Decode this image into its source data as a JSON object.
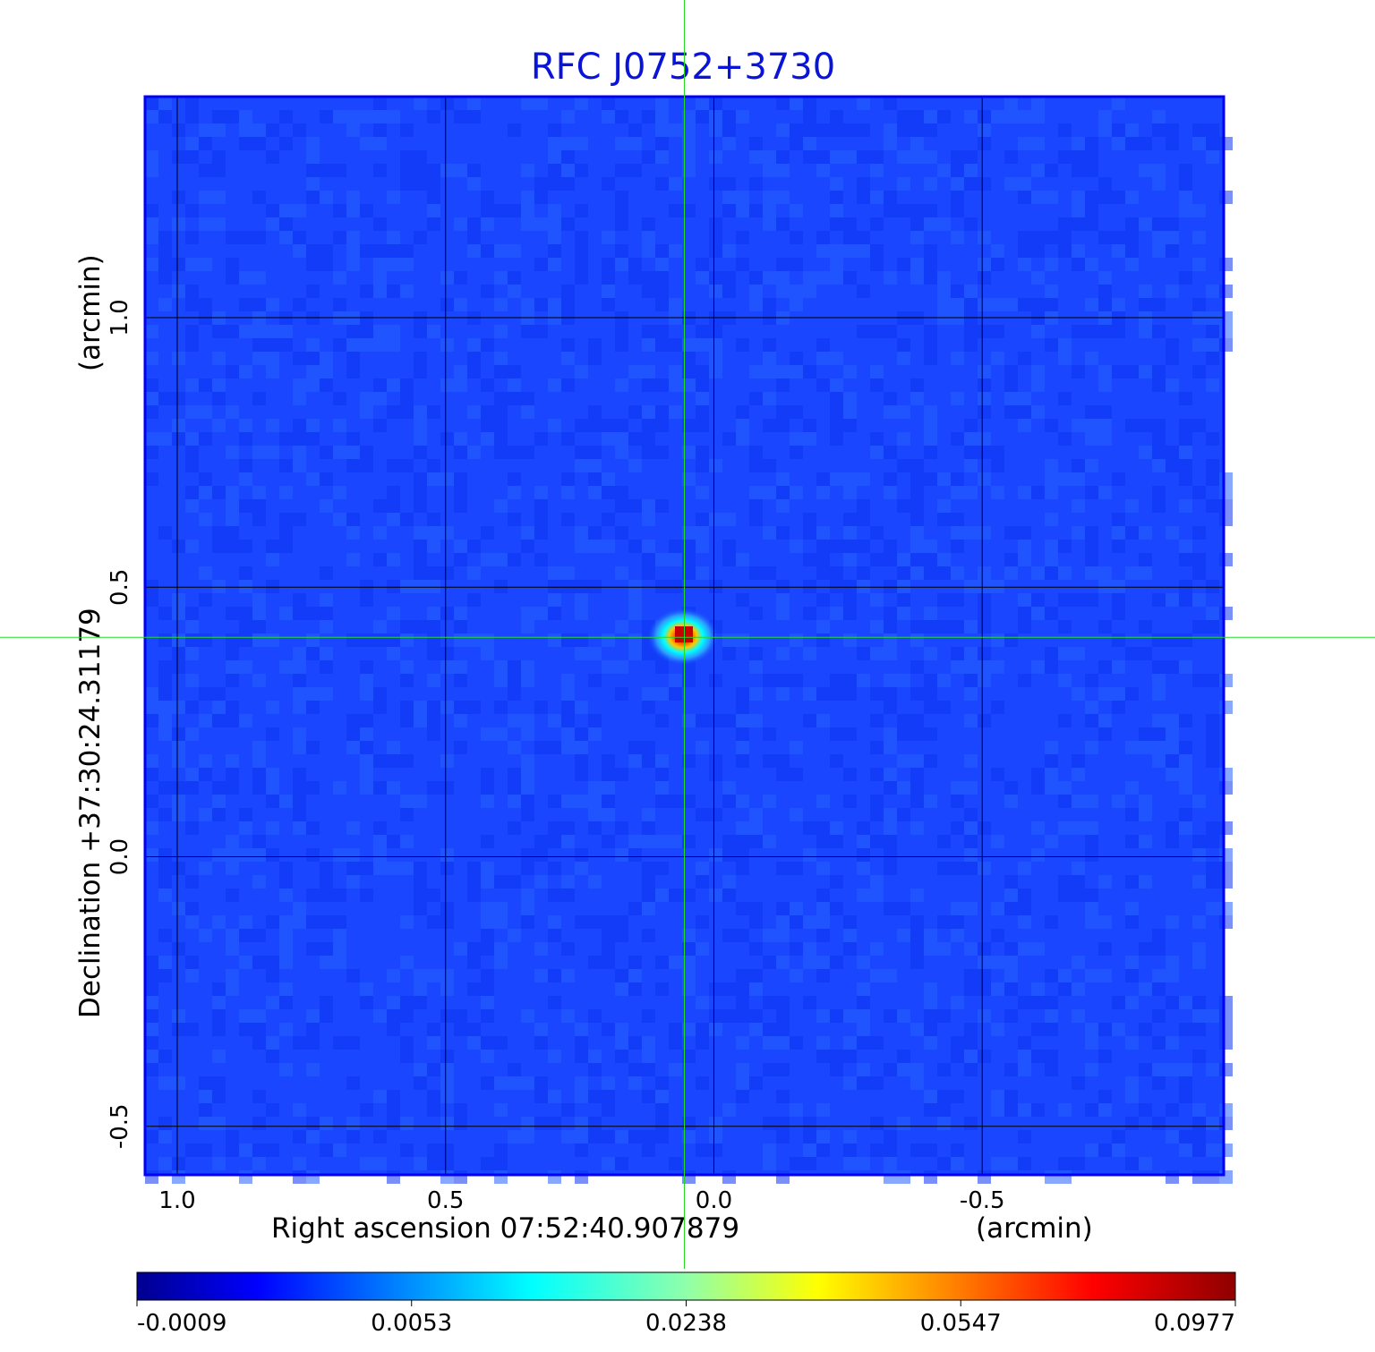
{
  "chart_data": {
    "type": "heatmap",
    "title": "RFC J0752+3730",
    "xlabel": "Right ascension  07:52:40.907879",
    "xunit": "(arcmin)",
    "ylabel": "Declination  +37:30:24.31179",
    "yunit": "(arcmin)",
    "x_ticks": [
      "1.0",
      "0.5",
      "0.0",
      "-0.5"
    ],
    "y_ticks": [
      "1.0",
      "0.5",
      "0.0",
      "-0.5"
    ],
    "x_tick_values": [
      1.0,
      0.5,
      0.0,
      -0.5
    ],
    "y_tick_values": [
      1.0,
      0.5,
      0.0,
      -0.5
    ],
    "xlim": [
      1.06,
      -0.95
    ],
    "ylim": [
      -0.59,
      1.41
    ],
    "grid": true,
    "crosshair": {
      "x": 0.055,
      "y": 0.407,
      "color": "#22dd22"
    },
    "peak": {
      "x": 0.055,
      "y": 0.407,
      "value": 0.0977
    },
    "colorbar": {
      "colormap": "jet",
      "ticks": [
        "-0.0009",
        "0.0053",
        "0.0238",
        "0.0547",
        "0.0977"
      ],
      "tick_values": [
        -0.0009,
        0.0053,
        0.0238,
        0.0547,
        0.0977
      ],
      "range": [
        -0.0009,
        0.0977
      ]
    },
    "colors": {
      "title": "#0a14d8",
      "frame": "#0000ff",
      "grid": "#000000"
    }
  }
}
